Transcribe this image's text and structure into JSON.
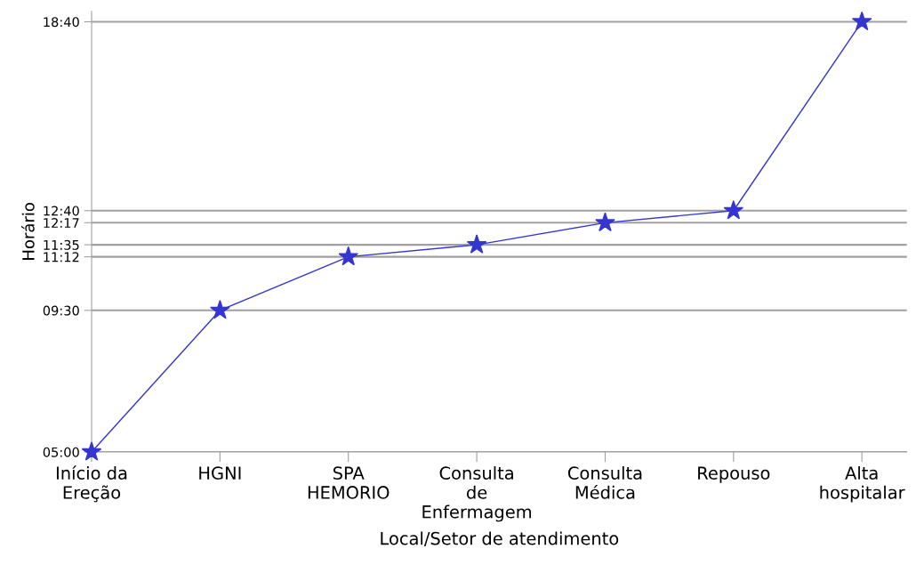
{
  "chart_data": {
    "type": "line",
    "xlabel": "Local/Setor de atendimento",
    "ylabel": "Horário",
    "categories": [
      "Início da\nEreção",
      "HGNI",
      "SPA\nHEMORIO",
      "Consulta\nde\nEnfermagem",
      "Consulta\nMédica",
      "Repouso",
      "Alta\nhospitalar"
    ],
    "series": [
      {
        "color": "#3535d0",
        "values": [
          5,
          9.5,
          11.2,
          11.5833,
          12.2833,
          12.6667,
          18.6667
        ]
      }
    ],
    "ylim": [
      5,
      19
    ],
    "yticks": [
      {
        "value": 5,
        "label": "05:00"
      },
      {
        "value": 9.5,
        "label": "09:30"
      },
      {
        "value": 11.2,
        "label": "11:12"
      },
      {
        "value": 11.5833,
        "label": "11:35"
      },
      {
        "value": 12.2833,
        "label": "12:17"
      },
      {
        "value": 12.6667,
        "label": "12:40"
      },
      {
        "value": 18.6667,
        "label": "18:40"
      }
    ],
    "grid": "y",
    "marker": "star",
    "line_style": "solid",
    "legend": false
  }
}
